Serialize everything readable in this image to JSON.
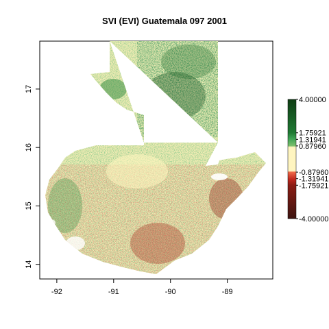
{
  "title": "SVI (EVI) Guatemala 097 2001",
  "map": {
    "x_ticks": [
      "-92",
      "-91",
      "-90",
      "-89"
    ],
    "y_ticks": [
      "14",
      "15",
      "16",
      "17"
    ],
    "x_range": [
      -92.3,
      -88.2
    ],
    "y_range": [
      13.75,
      17.82
    ]
  },
  "legend": {
    "range": [
      -4,
      4
    ],
    "labels": [
      "4.00000",
      "1.75921",
      "1.31941",
      "0.87960",
      "-0.87960",
      "-1.31941",
      "-1.75921",
      "-4.00000"
    ],
    "values": [
      4.0,
      1.75921,
      1.31941,
      0.8796,
      -0.8796,
      -1.31941,
      -1.75921,
      -4.0
    ],
    "colors": {
      "high": "#0f3d14",
      "mid_high": "#1f8a3a",
      "low_high": "#7cc06d",
      "neutral": "#fff5c0",
      "low_low": "#f06a4a",
      "mid_low": "#c0281e",
      "low": "#3d1410"
    }
  },
  "colors": {
    "land_base": "#f5edb5",
    "forest": "#2f8a3e",
    "dense_forest": "#0f4d1e",
    "dry": "#c95a3b",
    "frame": "#000000"
  }
}
